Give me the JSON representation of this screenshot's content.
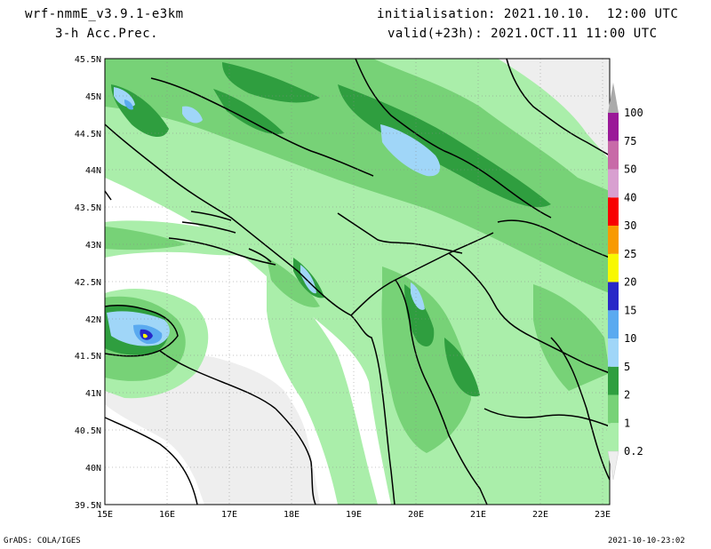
{
  "header": {
    "model": "wrf-nmmE_v3.9.1-e3km",
    "field": "3-h Acc.Prec.",
    "init": "initialisation: 2021.10.10.  12:00 UTC",
    "valid": "valid(+23h): 2021.OCT.11 11:00 UTC"
  },
  "footer": {
    "left": "GrADS: COLA/IGES",
    "right": "2021-10-10-23:02"
  },
  "axes": {
    "lat_labels": [
      "45.5N",
      "45N",
      "44.5N",
      "44N",
      "43.5N",
      "43N",
      "42.5N",
      "42N",
      "41.5N",
      "41N",
      "40.5N",
      "40N",
      "39.5N"
    ],
    "lon_labels": [
      "15E",
      "16E",
      "17E",
      "18E",
      "19E",
      "20E",
      "21E",
      "22E",
      "23E"
    ]
  },
  "legend": {
    "levels": [
      "0.2",
      "1",
      "2",
      "5",
      "10",
      "15",
      "20",
      "25",
      "30",
      "40",
      "50",
      "75",
      "100"
    ],
    "colors": [
      "#aaeeaa",
      "#77d277",
      "#2f9e3f",
      "#a0d6f8",
      "#5aaaf0",
      "#2828c8",
      "#f8f800",
      "#f89a00",
      "#f80000",
      "#d8a0d0",
      "#c86aa8",
      "#9a1898"
    ]
  },
  "colors": {
    "land": "#eeeeee",
    "sea": "#ffffff",
    "light_green": "#aaeeaa",
    "mid_green": "#77d277",
    "dark_green": "#2f9e3f",
    "light_blue": "#a0d6f8",
    "blue": "#5aaaf0",
    "dark_blue": "#2828c8",
    "yellow": "#f8f800"
  }
}
